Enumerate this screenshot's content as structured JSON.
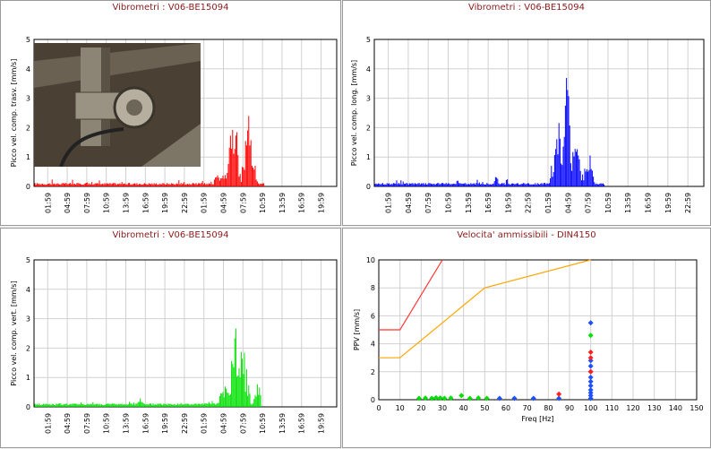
{
  "colors": {
    "red": "#ff0000",
    "blue": "#0000ff",
    "green": "#00e000",
    "orange": "#ffa500",
    "limit_red": "#ff3333",
    "grid": "#d0d0d0"
  },
  "chart_data": [
    {
      "type": "bar",
      "title": "Vibrometri : V06-BE15094",
      "ylabel": "Picco vel. comp. trasv. [mm/s]",
      "ylim": [
        0,
        5
      ],
      "yticks": [
        "0",
        "1",
        "2",
        "3",
        "4",
        "5"
      ],
      "xticks": [
        "01:59",
        "04:59",
        "07:59",
        "10:59",
        "13:59",
        "16:59",
        "19:59",
        "22:59",
        "01:59",
        "04:59",
        "07:59",
        "10:59",
        "13:59",
        "16:59",
        "19:59"
      ],
      "color": "#ff0000",
      "grid": true,
      "inset_image": "sensor-photo"
    },
    {
      "type": "bar",
      "title": "Vibrometri : V06-BE15094",
      "ylabel": "Picco vel. comp. long. [mm/s]",
      "ylim": [
        0,
        5
      ],
      "yticks": [
        "0",
        "1",
        "2",
        "3",
        "4",
        "5"
      ],
      "xticks": [
        "01:59",
        "04:59",
        "07:59",
        "10:59",
        "13:59",
        "16:59",
        "19:59",
        "22:59",
        "01:59",
        "04:59",
        "07:59",
        "10:59",
        "13:59",
        "16:59",
        "19:59",
        "22:59"
      ],
      "color": "#0000ff",
      "grid": true
    },
    {
      "type": "bar",
      "title": "Vibrometri : V06-BE15094",
      "ylabel": "Picco vel. comp. vert. [mm/s]",
      "ylim": [
        0,
        5
      ],
      "yticks": [
        "0",
        "1",
        "2",
        "3",
        "4",
        "5"
      ],
      "xticks": [
        "01:59",
        "04:59",
        "07:59",
        "10:59",
        "13:59",
        "16:59",
        "19:59",
        "22:59",
        "01:59",
        "04:59",
        "07:59",
        "10:59",
        "13:59",
        "16:59",
        "19:59"
      ],
      "color": "#00e000",
      "grid": true
    },
    {
      "type": "scatter",
      "title": "Velocita' ammissibili - DIN4150",
      "xlabel": "Freq [Hz]",
      "ylabel": "PPV [mm/s]",
      "xlim": [
        0,
        150
      ],
      "ylim": [
        0,
        10
      ],
      "xticks": [
        "0",
        "10",
        "20",
        "30",
        "40",
        "50",
        "60",
        "70",
        "80",
        "90",
        "100",
        "110",
        "120",
        "130",
        "140",
        "150"
      ],
      "yticks": [
        "0",
        "2",
        "4",
        "6",
        "8",
        "10"
      ],
      "grid": true,
      "limit_lines": [
        {
          "color": "#ff3333",
          "x": [
            0,
            10,
            30
          ],
          "y": [
            5,
            5,
            10
          ]
        },
        {
          "color": "#ffa500",
          "x": [
            0,
            10,
            50,
            100
          ],
          "y": [
            3,
            3,
            8,
            10
          ]
        }
      ],
      "series": [
        {
          "color": "#00e000",
          "x": [
            19,
            22,
            25,
            27,
            29,
            31,
            34,
            39,
            43,
            47,
            51,
            100
          ],
          "y": [
            0.1,
            0.12,
            0.1,
            0.14,
            0.12,
            0.1,
            0.12,
            0.3,
            0.1,
            0.12,
            0.1,
            4.6
          ]
        },
        {
          "color": "#1e50ff",
          "x": [
            57,
            64,
            73,
            85,
            100,
            100,
            100,
            100,
            100,
            100,
            100,
            100,
            100,
            100,
            100
          ],
          "y": [
            0.1,
            0.1,
            0.1,
            0.1,
            5.5,
            2.8,
            2.4,
            2.0,
            1.6,
            1.3,
            1.0,
            0.7,
            0.5,
            0.3,
            0.1
          ]
        },
        {
          "color": "#ff2020",
          "x": [
            85,
            100,
            100,
            100
          ],
          "y": [
            0.4,
            3.4,
            3.0,
            2.0
          ]
        }
      ]
    }
  ]
}
